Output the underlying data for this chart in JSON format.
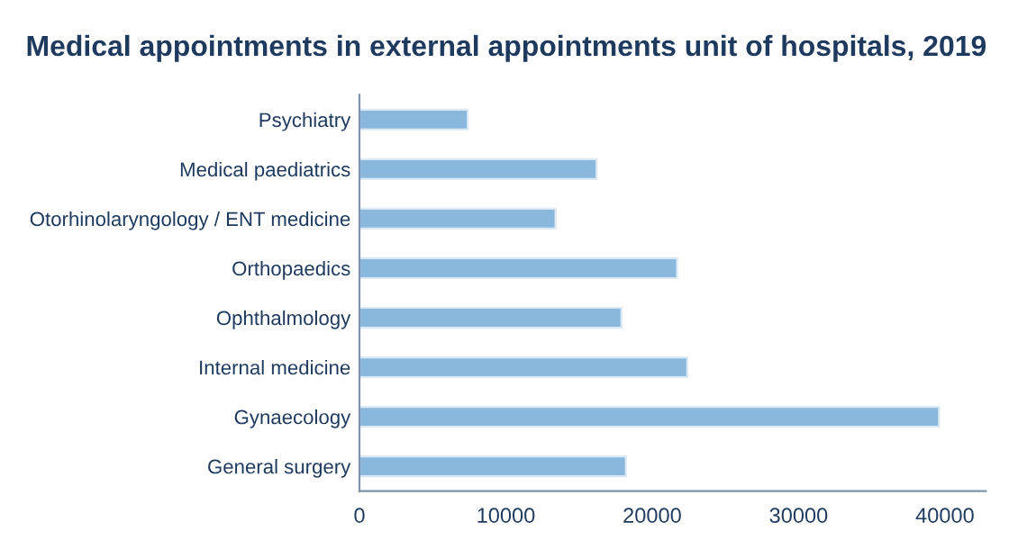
{
  "chart_data": {
    "type": "bar",
    "orientation": "horizontal",
    "title": "Medical appointments in external appointments unit of hospitals, 2019",
    "categories": [
      "Psychiatry",
      "Medical paediatrics",
      "Otorhinolaryngology / ENT medicine",
      "Orthopaedics",
      "Ophthalmology",
      "Internal medicine",
      "Gynaecology",
      "General surgery"
    ],
    "values": [
      7400,
      16200,
      13400,
      21700,
      17900,
      22400,
      39600,
      18200
    ],
    "color": "#8ab8dc",
    "xlim": [
      0,
      42800
    ],
    "xticks": [
      0,
      10000,
      20000,
      30000,
      40000
    ],
    "grid": false,
    "legend": false
  }
}
